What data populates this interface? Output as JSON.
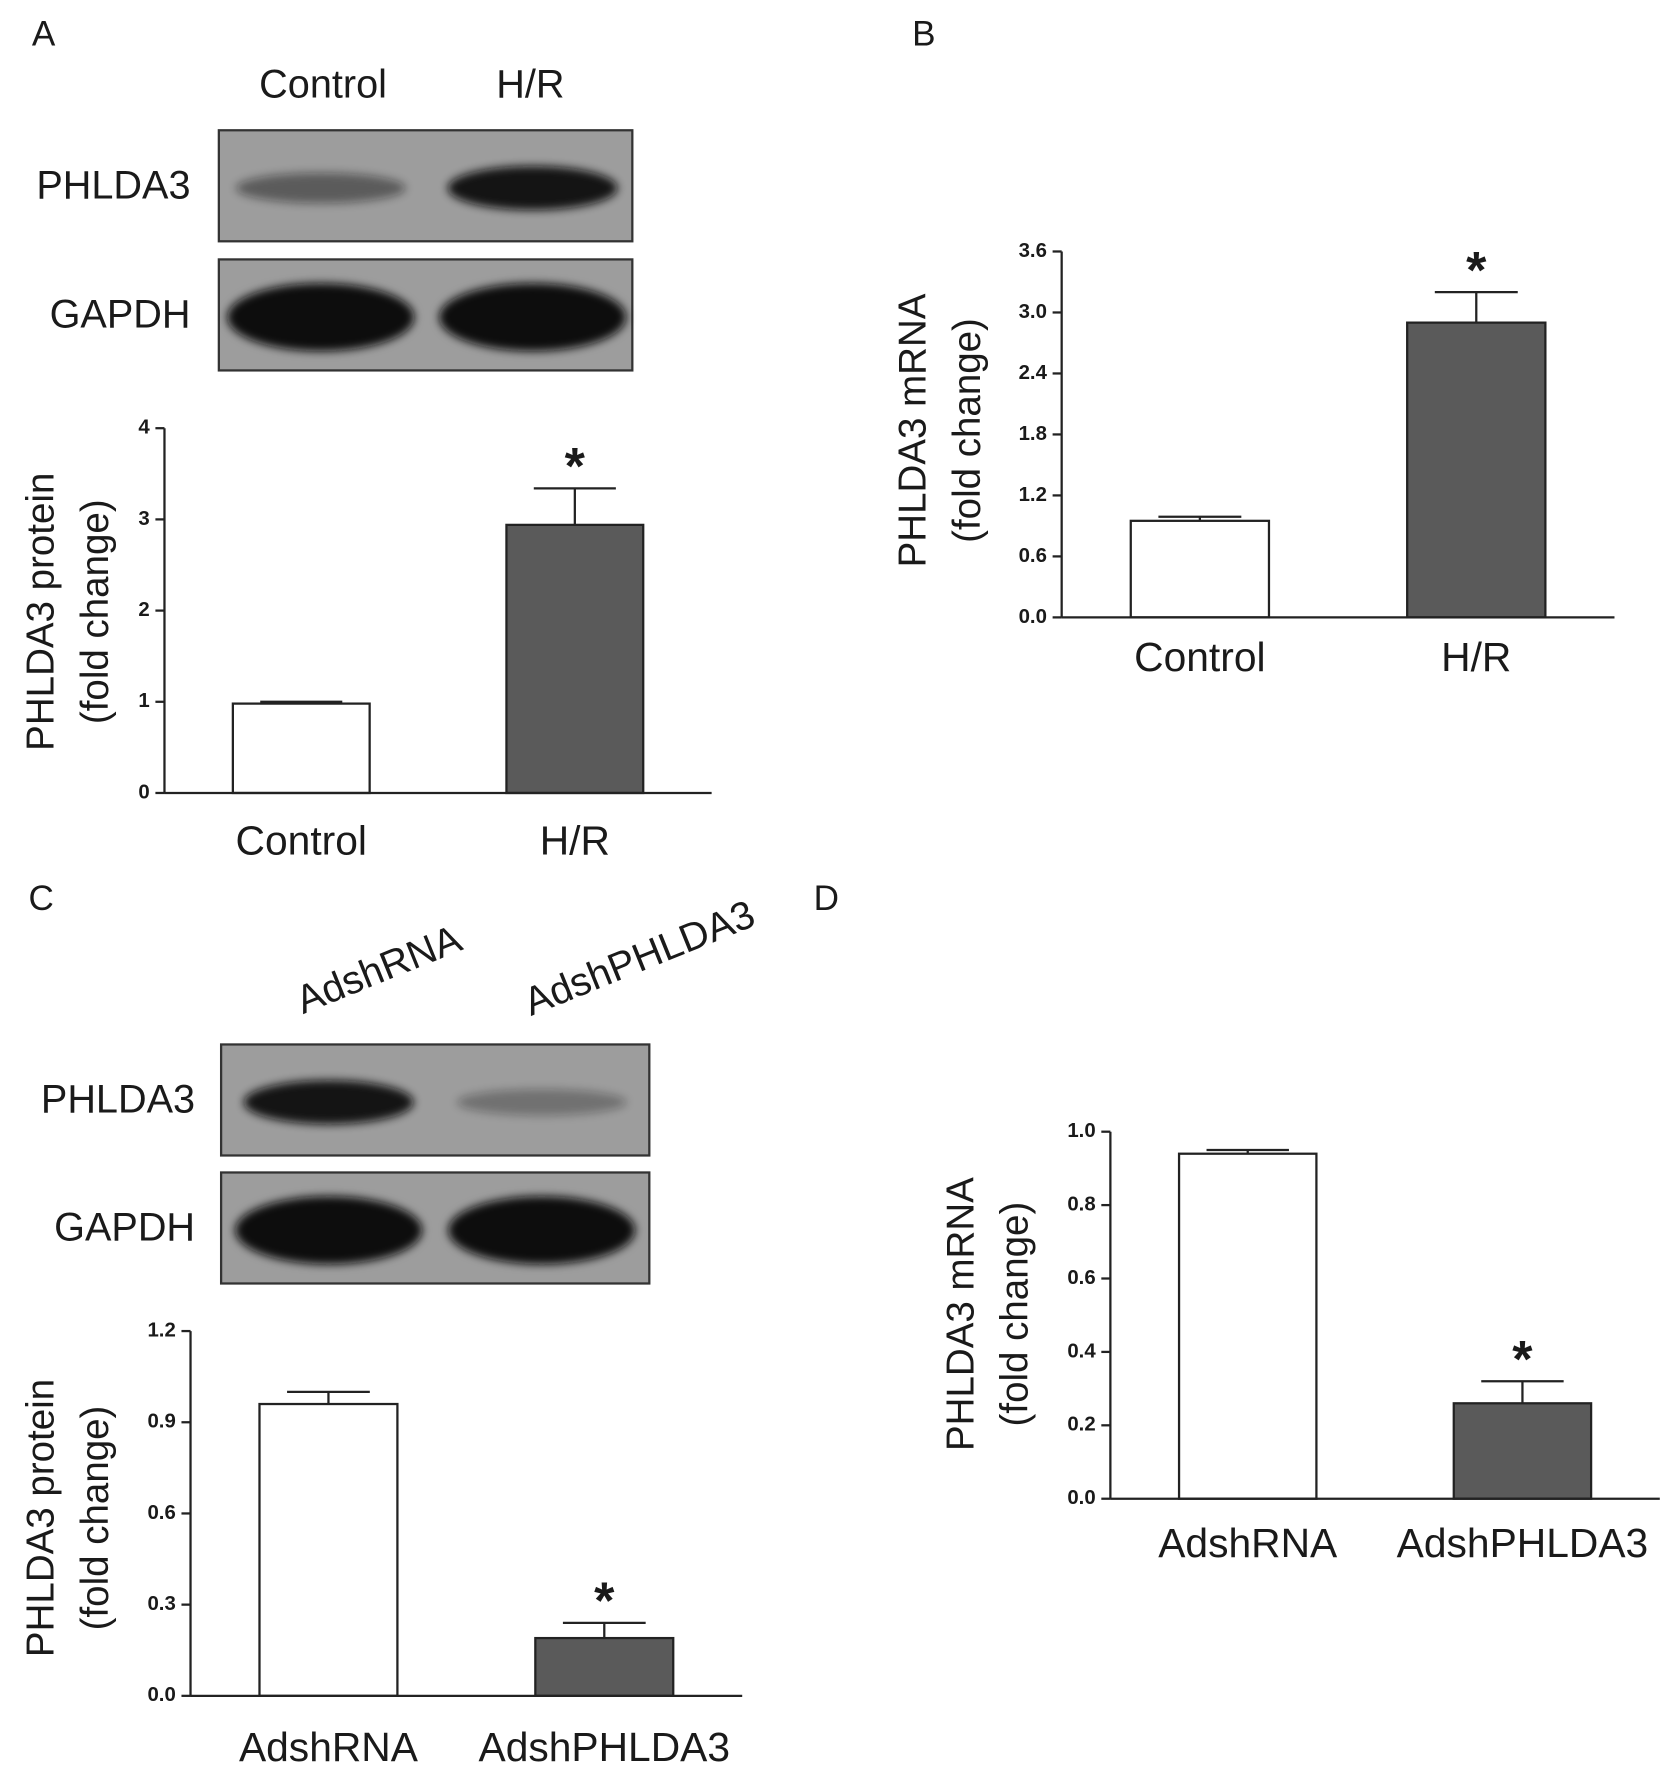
{
  "chart_data": [
    {
      "type": "bar",
      "panel": "A",
      "categories": [
        "Control",
        "H/R"
      ],
      "values": [
        0.98,
        2.94
      ],
      "errors": [
        0.02,
        0.4
      ],
      "colors": [
        "#ffffff",
        "#5a5a5a"
      ],
      "significance": [
        null,
        "*"
      ],
      "ylabel": [
        "PHLDA3 protein",
        "(fold change)"
      ],
      "ylim": [
        0,
        4
      ],
      "yticks": [
        0,
        1,
        2,
        3,
        4
      ],
      "blot": {
        "lanes": [
          "Control",
          "H/R"
        ],
        "rows": [
          "PHLDA3",
          "GAPDH"
        ]
      }
    },
    {
      "type": "bar",
      "panel": "B",
      "categories": [
        "Control",
        "H/R"
      ],
      "values": [
        0.95,
        2.9
      ],
      "errors": [
        0.04,
        0.3
      ],
      "colors": [
        "#ffffff",
        "#5a5a5a"
      ],
      "significance": [
        null,
        "*"
      ],
      "ylabel": [
        "PHLDA3 mRNA",
        "(fold change)"
      ],
      "ylim": [
        0,
        3.6
      ],
      "yticks": [
        {
          "value": 0,
          "label": "0.0"
        },
        {
          "value": 0.6,
          "label": "0.6"
        },
        {
          "value": 1.2,
          "label": "1.2"
        },
        {
          "value": 1.8,
          "label": "1.8"
        },
        {
          "value": 2.4,
          "label": "2.4"
        },
        {
          "value": 3,
          "label": "3.0"
        },
        {
          "value": 3.6,
          "label": "3.6"
        }
      ]
    },
    {
      "type": "bar",
      "panel": "C",
      "categories": [
        "AdshRNA",
        "AdshPHLDA3"
      ],
      "values": [
        0.96,
        0.19
      ],
      "errors": [
        0.04,
        0.05
      ],
      "colors": [
        "#ffffff",
        "#5a5a5a"
      ],
      "significance": [
        null,
        "*"
      ],
      "ylabel": [
        "PHLDA3 protein",
        "(fold change)"
      ],
      "ylim": [
        0,
        1.2
      ],
      "yticks": [
        {
          "value": 0,
          "label": "0.0"
        },
        {
          "value": 0.3,
          "label": "0.3"
        },
        {
          "value": 0.6,
          "label": "0.6"
        },
        {
          "value": 0.9,
          "label": "0.9"
        },
        {
          "value": 1.2,
          "label": "1.2"
        }
      ],
      "blot": {
        "lanes": [
          "AdshRNA",
          "AdshPHLDA3"
        ],
        "rows": [
          "PHLDA3",
          "GAPDH"
        ]
      }
    },
    {
      "type": "bar",
      "panel": "D",
      "categories": [
        "AdshRNA",
        "AdshPHLDA3"
      ],
      "values": [
        0.94,
        0.26
      ],
      "errors": [
        0.01,
        0.06
      ],
      "colors": [
        "#ffffff",
        "#5a5a5a"
      ],
      "significance": [
        null,
        "*"
      ],
      "ylabel": [
        "PHLDA3 mRNA",
        "(fold change)"
      ],
      "ylim": [
        0,
        1
      ],
      "yticks": [
        {
          "value": 0,
          "label": "0.0"
        },
        {
          "value": 0.2,
          "label": "0.2"
        },
        {
          "value": 0.4,
          "label": "0.4"
        },
        {
          "value": 0.6,
          "label": "0.6"
        },
        {
          "value": 0.8,
          "label": "0.8"
        },
        {
          "value": 1,
          "label": "1.0"
        }
      ]
    }
  ]
}
